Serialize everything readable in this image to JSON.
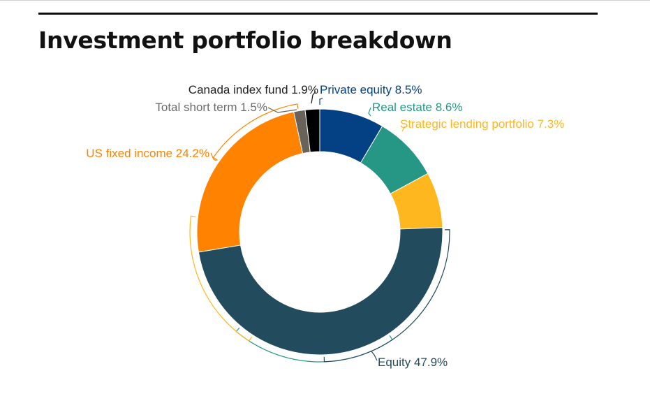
{
  "title": "Investment portfolio breakdown",
  "chart_data": {
    "type": "pie",
    "variant": "donut",
    "title": "Investment portfolio breakdown",
    "unit": "%",
    "start_angle_deg": 0,
    "direction": "clockwise",
    "slices": [
      {
        "label": "Private equity",
        "value": 8.5,
        "display": "Private equity 8.5%",
        "color": "#034184"
      },
      {
        "label": "Real estate",
        "value": 8.6,
        "display": "Real estate 8.6%",
        "color": "#279785"
      },
      {
        "label": "Strategic lending portfolio",
        "value": 7.3,
        "display": "Strategic lending portfolio 7.3%",
        "color": "#FFB71F"
      },
      {
        "label": "Equity",
        "value": 47.9,
        "display": "Equity 47.9%",
        "color": "#234B5E"
      },
      {
        "label": "US fixed income",
        "value": 24.2,
        "display": "US fixed income 24.2%",
        "color": "#FF8200"
      },
      {
        "label": "Total short term",
        "value": 1.5,
        "display": "Total short term 1.5%",
        "color": "#69625A"
      },
      {
        "label": "Canada index fund",
        "value": 1.9,
        "display": "Canada index fund 1.9%",
        "color": "#000000"
      }
    ],
    "legend": "none"
  }
}
